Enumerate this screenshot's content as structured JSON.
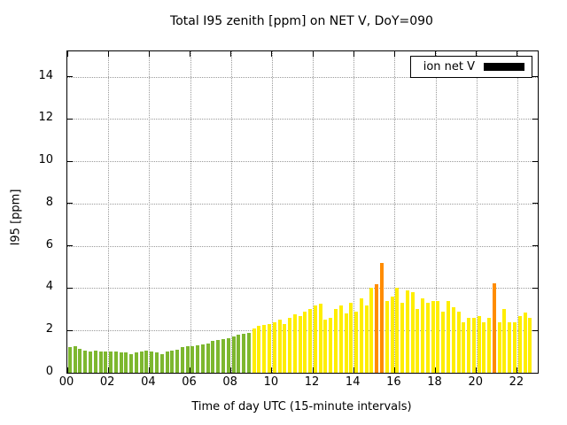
{
  "figure": {
    "legend": {
      "label": "ion net V",
      "swatch_color": "#000000"
    }
  },
  "chart_data": {
    "type": "bar",
    "title": "Total I95 zenith [ppm] on NET V, DoY=090",
    "xlabel": "Time of day UTC (15-minute intervals)",
    "ylabel": "I95 [ppm]",
    "legend_entries": [
      "ion net V"
    ],
    "legend_position": "top-right",
    "grid": true,
    "xlim": [
      0,
      23
    ],
    "ylim": [
      0,
      15.2
    ],
    "x_tick_labels": [
      "00",
      "02",
      "04",
      "06",
      "08",
      "10",
      "12",
      "14",
      "16",
      "18",
      "20",
      "22"
    ],
    "x_tick_values": [
      0,
      2,
      4,
      6,
      8,
      10,
      12,
      14,
      16,
      18,
      20,
      22
    ],
    "y_ticks": [
      0,
      2,
      4,
      6,
      8,
      10,
      12,
      14
    ],
    "interval_minutes": 15,
    "start_time": "00:00",
    "values": [
      1.2,
      1.25,
      1.15,
      1.05,
      1.0,
      1.05,
      1.0,
      1.0,
      1.0,
      1.0,
      0.95,
      0.95,
      0.9,
      0.95,
      1.0,
      1.05,
      1.0,
      0.95,
      0.9,
      1.0,
      1.05,
      1.1,
      1.2,
      1.25,
      1.25,
      1.3,
      1.35,
      1.4,
      1.5,
      1.55,
      1.6,
      1.65,
      1.7,
      1.8,
      1.85,
      1.9,
      2.1,
      2.2,
      2.25,
      2.3,
      2.4,
      2.5,
      2.3,
      2.6,
      2.75,
      2.7,
      2.9,
      3.0,
      3.2,
      3.25,
      2.5,
      2.6,
      3.0,
      3.2,
      2.8,
      3.3,
      2.9,
      3.5,
      3.2,
      4.0,
      4.2,
      5.2,
      3.4,
      3.6,
      4.0,
      3.3,
      3.9,
      3.8,
      3.0,
      3.5,
      3.3,
      3.4,
      3.4,
      2.9,
      3.4,
      3.1,
      2.9,
      2.4,
      2.6,
      2.6,
      2.7,
      2.4,
      2.6,
      4.25,
      2.4,
      3.0,
      2.4,
      2.4,
      2.7,
      2.85,
      2.6
    ],
    "bar_colors": [
      "g",
      "g",
      "g",
      "g",
      "g",
      "g",
      "g",
      "g",
      "g",
      "g",
      "g",
      "g",
      "g",
      "g",
      "g",
      "g",
      "g",
      "g",
      "g",
      "g",
      "g",
      "g",
      "g",
      "g",
      "g",
      "g",
      "g",
      "g",
      "g",
      "g",
      "g",
      "g",
      "g",
      "g",
      "g",
      "g",
      "y",
      "y",
      "y",
      "y",
      "y",
      "y",
      "y",
      "y",
      "y",
      "y",
      "y",
      "y",
      "y",
      "y",
      "y",
      "y",
      "y",
      "y",
      "y",
      "y",
      "y",
      "y",
      "y",
      "y",
      "o",
      "o",
      "y",
      "y",
      "y",
      "y",
      "y",
      "y",
      "y",
      "y",
      "y",
      "y",
      "y",
      "y",
      "y",
      "y",
      "y",
      "y",
      "y",
      "y",
      "y",
      "y",
      "y",
      "o",
      "y",
      "y",
      "y",
      "y",
      "y",
      "y",
      "y"
    ],
    "palette": {
      "g": "#7db72f",
      "y": "#ffee00",
      "o": "#ff8c00"
    }
  }
}
